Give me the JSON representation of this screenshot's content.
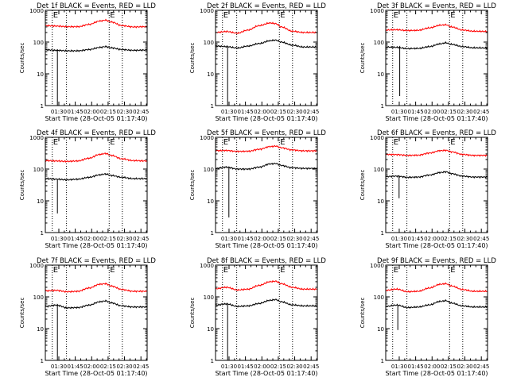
{
  "figure": {
    "ylabel": "Counts/sec",
    "xlabel": "Start Time (28-Oct-05 01:17:40)",
    "x_ticks": [
      "01:30",
      "01:45",
      "02:00",
      "02:15",
      "02:30",
      "02:45"
    ],
    "y_ticks": [
      "1",
      "10",
      "100",
      "1000"
    ],
    "marker_label": "E",
    "colors": {
      "events": "#000000",
      "lld": "#ff0000",
      "axes": "#000000",
      "background": "#ffffff"
    }
  },
  "chart_data": [
    {
      "type": "line",
      "title": "Det 1f BLACK = Events, RED = LLD",
      "xlabel": "Start Time (28-Oct-05 01:17:40)",
      "ylabel": "Counts/sec",
      "x_unit": "minutes after 01:17:40",
      "xlim": [
        0,
        93
      ],
      "ylim": [
        1,
        1000
      ],
      "yscale": "log",
      "markers_x": [
        "01:24",
        "01:37",
        "02:16",
        "02:28"
      ],
      "series": [
        {
          "name": "LLD",
          "color": "#ff0000",
          "x": [
            0,
            10,
            20,
            30,
            40,
            50,
            55,
            60,
            70,
            80,
            93
          ],
          "y": [
            330,
            320,
            305,
            305,
            360,
            460,
            490,
            430,
            330,
            300,
            305
          ]
        },
        {
          "name": "Events",
          "color": "#000000",
          "x": [
            0,
            10,
            20,
            30,
            40,
            50,
            55,
            60,
            70,
            80,
            93
          ],
          "y": [
            57,
            55,
            53,
            53,
            58,
            68,
            72,
            66,
            58,
            55,
            56
          ]
        }
      ],
      "dropout": {
        "x": 11,
        "y_min": 1
      }
    },
    {
      "type": "line",
      "title": "Det 2f BLACK = Events, RED = LLD",
      "xlabel": "Start Time (28-Oct-05 01:17:40)",
      "ylabel": "Counts/sec",
      "x_unit": "minutes after 01:17:40",
      "xlim": [
        0,
        93
      ],
      "ylim": [
        1,
        1000
      ],
      "yscale": "log",
      "markers_x": [
        "01:24",
        "01:37",
        "02:16",
        "02:28"
      ],
      "series": [
        {
          "name": "LLD",
          "color": "#ff0000",
          "x": [
            0,
            10,
            20,
            30,
            40,
            50,
            55,
            60,
            70,
            80,
            93
          ],
          "y": [
            200,
            215,
            190,
            240,
            330,
            400,
            380,
            300,
            220,
            200,
            200
          ]
        },
        {
          "name": "Events",
          "color": "#000000",
          "x": [
            0,
            10,
            20,
            30,
            40,
            50,
            55,
            60,
            70,
            80,
            93
          ],
          "y": [
            75,
            72,
            65,
            75,
            90,
            110,
            115,
            100,
            80,
            70,
            70
          ]
        }
      ],
      "dropout": {
        "x": 11,
        "y_min": 1
      }
    },
    {
      "type": "line",
      "title": "Det 3f BLACK = Events, RED = LLD",
      "xlabel": "Start Time (28-Oct-05 01:17:40)",
      "ylabel": "Counts/sec",
      "x_unit": "minutes after 01:17:40",
      "xlim": [
        0,
        93
      ],
      "ylim": [
        1,
        1000
      ],
      "yscale": "log",
      "markers_x": [
        "01:24",
        "01:37",
        "02:16",
        "02:28"
      ],
      "series": [
        {
          "name": "LLD",
          "color": "#ff0000",
          "x": [
            0,
            10,
            20,
            30,
            40,
            50,
            55,
            60,
            70,
            80,
            93
          ],
          "y": [
            240,
            245,
            230,
            235,
            280,
            340,
            350,
            300,
            240,
            220,
            215
          ]
        },
        {
          "name": "Events",
          "color": "#000000",
          "x": [
            0,
            10,
            20,
            30,
            40,
            50,
            55,
            60,
            70,
            80,
            93
          ],
          "y": [
            70,
            68,
            62,
            63,
            72,
            88,
            95,
            85,
            72,
            66,
            65
          ]
        }
      ],
      "dropout": {
        "x": 13,
        "y_min": 2
      }
    },
    {
      "type": "line",
      "title": "Det 4f BLACK = Events, RED = LLD",
      "xlabel": "Start Time (28-Oct-05 01:17:40)",
      "ylabel": "Counts/sec",
      "x_unit": "minutes after 01:17:40",
      "xlim": [
        0,
        93
      ],
      "ylim": [
        1,
        1000
      ],
      "yscale": "log",
      "markers_x": [
        "01:24",
        "01:37",
        "02:16",
        "02:28"
      ],
      "series": [
        {
          "name": "LLD",
          "color": "#ff0000",
          "x": [
            0,
            10,
            20,
            30,
            40,
            50,
            55,
            60,
            70,
            80,
            93
          ],
          "y": [
            185,
            180,
            175,
            180,
            220,
            290,
            310,
            270,
            210,
            185,
            180
          ]
        },
        {
          "name": "Events",
          "color": "#000000",
          "x": [
            0,
            10,
            20,
            30,
            40,
            50,
            55,
            60,
            70,
            80,
            93
          ],
          "y": [
            50,
            48,
            46,
            48,
            55,
            66,
            70,
            63,
            55,
            50,
            50
          ]
        }
      ],
      "dropout": {
        "x": 11,
        "y_min": 4
      }
    },
    {
      "type": "line",
      "title": "Det 5f BLACK = Events, RED = LLD",
      "xlabel": "Start Time (28-Oct-05 01:17:40)",
      "ylabel": "Counts/sec",
      "x_unit": "minutes after 01:17:40",
      "xlim": [
        0,
        93
      ],
      "ylim": [
        1,
        1000
      ],
      "yscale": "log",
      "markers_x": [
        "01:24",
        "01:37",
        "02:16",
        "02:28"
      ],
      "series": [
        {
          "name": "LLD",
          "color": "#ff0000",
          "x": [
            0,
            10,
            20,
            30,
            40,
            50,
            55,
            60,
            70,
            80,
            93
          ],
          "y": [
            380,
            385,
            360,
            365,
            420,
            510,
            530,
            470,
            400,
            375,
            375
          ]
        },
        {
          "name": "Events",
          "color": "#000000",
          "x": [
            0,
            10,
            20,
            30,
            40,
            50,
            55,
            60,
            70,
            80,
            93
          ],
          "y": [
            105,
            115,
            100,
            100,
            115,
            145,
            150,
            130,
            110,
            105,
            105
          ]
        }
      ],
      "dropout": {
        "x": 12,
        "y_min": 3
      }
    },
    {
      "type": "line",
      "title": "Det 6f BLACK = Events, RED = LLD",
      "xlabel": "Start Time (28-Oct-05 01:17:40)",
      "ylabel": "Counts/sec",
      "x_unit": "minutes after 01:17:40",
      "xlim": [
        0,
        93
      ],
      "ylim": [
        1,
        1000
      ],
      "yscale": "log",
      "markers_x": [
        "01:24",
        "01:37",
        "02:16",
        "02:28"
      ],
      "series": [
        {
          "name": "LLD",
          "color": "#ff0000",
          "x": [
            0,
            10,
            20,
            30,
            40,
            50,
            55,
            60,
            70,
            80,
            93
          ],
          "y": [
            290,
            285,
            270,
            275,
            320,
            380,
            390,
            350,
            290,
            270,
            270
          ]
        },
        {
          "name": "Events",
          "color": "#000000",
          "x": [
            0,
            10,
            20,
            30,
            40,
            50,
            55,
            60,
            70,
            80,
            93
          ],
          "y": [
            58,
            60,
            55,
            56,
            65,
            78,
            82,
            72,
            60,
            56,
            56
          ]
        }
      ],
      "dropout": {
        "x": 12,
        "y_min": 12
      }
    },
    {
      "type": "line",
      "title": "Det 7f BLACK = Events, RED = LLD",
      "xlabel": "Start Time (28-Oct-05 01:17:40)",
      "ylabel": "Counts/sec",
      "x_unit": "minutes after 01:17:40",
      "xlim": [
        0,
        93
      ],
      "ylim": [
        1,
        1000
      ],
      "yscale": "log",
      "markers_x": [
        "01:24",
        "01:37",
        "02:16",
        "02:28"
      ],
      "series": [
        {
          "name": "LLD",
          "color": "#ff0000",
          "x": [
            0,
            10,
            20,
            30,
            40,
            50,
            55,
            60,
            70,
            80,
            93
          ],
          "y": [
            155,
            160,
            145,
            150,
            190,
            250,
            260,
            220,
            170,
            150,
            150
          ]
        },
        {
          "name": "Events",
          "color": "#000000",
          "x": [
            0,
            10,
            20,
            30,
            40,
            50,
            55,
            60,
            70,
            80,
            93
          ],
          "y": [
            50,
            55,
            45,
            46,
            55,
            70,
            75,
            65,
            52,
            48,
            48
          ]
        }
      ],
      "dropout": {
        "x": 11,
        "y_min": 1
      }
    },
    {
      "type": "line",
      "title": "Det 8f BLACK = Events, RED = LLD",
      "xlabel": "Start Time (28-Oct-05 01:17:40)",
      "ylabel": "Counts/sec",
      "x_unit": "minutes after 01:17:40",
      "xlim": [
        0,
        93
      ],
      "ylim": [
        1,
        1000
      ],
      "yscale": "log",
      "markers_x": [
        "01:24",
        "01:37",
        "02:16",
        "02:28"
      ],
      "series": [
        {
          "name": "LLD",
          "color": "#ff0000",
          "x": [
            0,
            10,
            20,
            30,
            40,
            50,
            55,
            60,
            70,
            80,
            93
          ],
          "y": [
            180,
            200,
            165,
            175,
            230,
            300,
            310,
            260,
            200,
            175,
            175
          ]
        },
        {
          "name": "Events",
          "color": "#000000",
          "x": [
            0,
            10,
            20,
            30,
            40,
            50,
            55,
            60,
            70,
            80,
            93
          ],
          "y": [
            55,
            60,
            50,
            52,
            62,
            78,
            82,
            70,
            56,
            52,
            52
          ]
        }
      ],
      "dropout": {
        "x": 11,
        "y_min": 1
      }
    },
    {
      "type": "line",
      "title": "Det 9f BLACK = Events, RED = LLD",
      "xlabel": "Start Time (28-Oct-05 01:17:40)",
      "ylabel": "Counts/sec",
      "x_unit": "minutes after 01:17:40",
      "xlim": [
        0,
        93
      ],
      "ylim": [
        1,
        1000
      ],
      "yscale": "log",
      "markers_x": [
        "01:24",
        "01:37",
        "02:16",
        "02:28"
      ],
      "series": [
        {
          "name": "LLD",
          "color": "#ff0000",
          "x": [
            0,
            10,
            20,
            30,
            40,
            50,
            55,
            60,
            70,
            80,
            93
          ],
          "y": [
            160,
            175,
            145,
            150,
            190,
            250,
            260,
            220,
            170,
            150,
            150
          ]
        },
        {
          "name": "Events",
          "color": "#000000",
          "x": [
            0,
            10,
            20,
            30,
            40,
            50,
            55,
            60,
            70,
            80,
            93
          ],
          "y": [
            50,
            55,
            46,
            48,
            56,
            72,
            76,
            64,
            52,
            48,
            48
          ]
        }
      ],
      "dropout": {
        "x": 11,
        "y_min": 9
      }
    }
  ]
}
